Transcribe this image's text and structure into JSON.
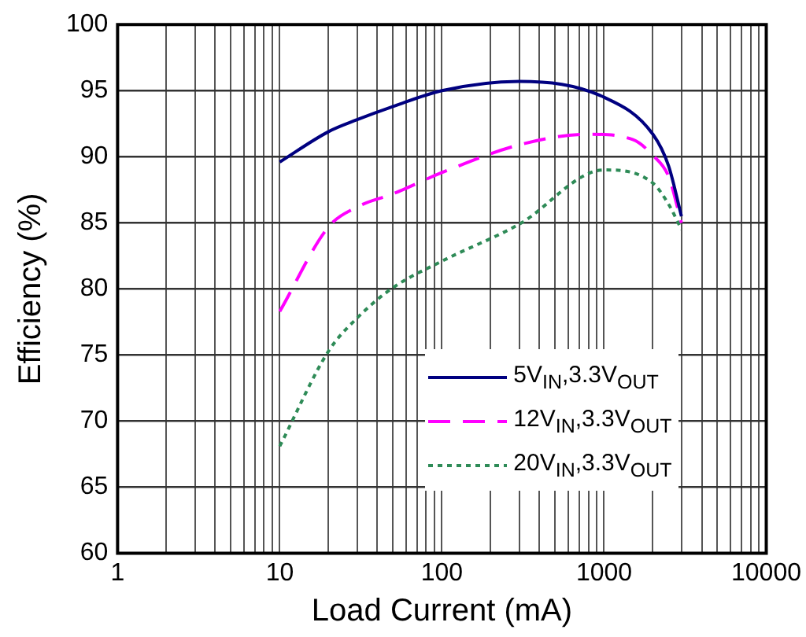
{
  "chart_data": {
    "type": "line",
    "xlabel": "Load Current (mA)",
    "ylabel": "Efficiency (%)",
    "log": "x",
    "xlim": [
      1,
      10000
    ],
    "xticks": [
      1,
      10,
      100,
      1000,
      10000
    ],
    "ylim": [
      60,
      100
    ],
    "yticks": [
      60,
      65,
      70,
      75,
      80,
      85,
      90,
      95,
      100
    ],
    "grid": true,
    "legend": "bottom right",
    "marker": "none",
    "series": [
      {
        "name": "5V$_{IN}$,3.3V$_{OUT}$",
        "color": "#000080",
        "line_style": "solid",
        "x": [
          10,
          20,
          30,
          50,
          100,
          300,
          1000,
          2000,
          2500,
          3000
        ],
        "values": [
          89.6,
          91.9,
          92.8,
          93.8,
          95.0,
          95.7,
          94.5,
          91.7,
          89.3,
          85.5
        ]
      },
      {
        "name": "12V$_{IN}$,3.3V$_{OUT}$",
        "color": "#ff00ff",
        "line_style": "dashed",
        "x": [
          10,
          20,
          30,
          50,
          100,
          300,
          800,
          1500,
          2000,
          2500,
          3000
        ],
        "values": [
          78.3,
          84.7,
          86.2,
          87.2,
          88.8,
          90.9,
          91.7,
          91.3,
          90.1,
          88.5,
          85.0
        ]
      },
      {
        "name": "20V$_{IN}$,3.3V$_{OUT}$",
        "color": "#2e8b57",
        "line_style": "dotted",
        "x": [
          10,
          20,
          30,
          50,
          100,
          300,
          1000,
          2000,
          2500,
          3000
        ],
        "values": [
          68.1,
          75.3,
          77.8,
          80.1,
          82.1,
          84.9,
          89.0,
          88.0,
          86.4,
          84.5
        ]
      }
    ]
  }
}
